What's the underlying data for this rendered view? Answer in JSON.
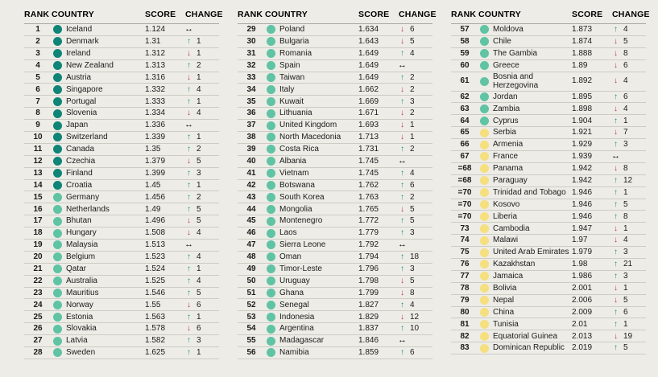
{
  "chart_data": {
    "type": "table",
    "columns": [
      "RANK",
      "COUNTRY",
      "SCORE",
      "CHANGE"
    ],
    "tier_colors": {
      "dark": "#0f8577",
      "light": "#5fc3a4",
      "yellow": "#f6df7d"
    },
    "arrow_glyphs": {
      "up": "↑",
      "down": "↓",
      "same": "↔"
    },
    "arrow_colors": {
      "up": "#238b80",
      "down": "#c03048",
      "same": "#101010"
    },
    "groups": [
      [
        {
          "rank": "1",
          "country": "Iceland",
          "score": "1.124",
          "dir": "same",
          "change": "",
          "tier": "dark"
        },
        {
          "rank": "2",
          "country": "Denmark",
          "score": "1.31",
          "dir": "up",
          "change": "1",
          "tier": "dark"
        },
        {
          "rank": "3",
          "country": "Ireland",
          "score": "1.312",
          "dir": "down",
          "change": "1",
          "tier": "dark"
        },
        {
          "rank": "4",
          "country": "New Zealand",
          "score": "1.313",
          "dir": "up",
          "change": "2",
          "tier": "dark"
        },
        {
          "rank": "5",
          "country": "Austria",
          "score": "1.316",
          "dir": "down",
          "change": "1",
          "tier": "dark"
        },
        {
          "rank": "6",
          "country": "Singapore",
          "score": "1.332",
          "dir": "up",
          "change": "4",
          "tier": "dark"
        },
        {
          "rank": "7",
          "country": "Portugal",
          "score": "1.333",
          "dir": "up",
          "change": "1",
          "tier": "dark"
        },
        {
          "rank": "8",
          "country": "Slovenia",
          "score": "1.334",
          "dir": "down",
          "change": "4",
          "tier": "dark"
        },
        {
          "rank": "9",
          "country": "Japan",
          "score": "1.336",
          "dir": "same",
          "change": "",
          "tier": "dark"
        },
        {
          "rank": "10",
          "country": "Switzerland",
          "score": "1.339",
          "dir": "up",
          "change": "1",
          "tier": "dark"
        },
        {
          "rank": "11",
          "country": "Canada",
          "score": "1.35",
          "dir": "up",
          "change": "2",
          "tier": "dark"
        },
        {
          "rank": "12",
          "country": "Czechia",
          "score": "1.379",
          "dir": "down",
          "change": "5",
          "tier": "dark"
        },
        {
          "rank": "13",
          "country": "Finland",
          "score": "1.399",
          "dir": "up",
          "change": "3",
          "tier": "dark"
        },
        {
          "rank": "14",
          "country": "Croatia",
          "score": "1.45",
          "dir": "up",
          "change": "1",
          "tier": "dark"
        },
        {
          "rank": "15",
          "country": "Germany",
          "score": "1.456",
          "dir": "up",
          "change": "2",
          "tier": "light"
        },
        {
          "rank": "16",
          "country": "Netherlands",
          "score": "1.49",
          "dir": "up",
          "change": "5",
          "tier": "light"
        },
        {
          "rank": "17",
          "country": "Bhutan",
          "score": "1.496",
          "dir": "down",
          "change": "5",
          "tier": "light"
        },
        {
          "rank": "18",
          "country": "Hungary",
          "score": "1.508",
          "dir": "down",
          "change": "4",
          "tier": "light"
        },
        {
          "rank": "19",
          "country": "Malaysia",
          "score": "1.513",
          "dir": "same",
          "change": "",
          "tier": "light"
        },
        {
          "rank": "20",
          "country": "Belgium",
          "score": "1.523",
          "dir": "up",
          "change": "4",
          "tier": "light"
        },
        {
          "rank": "21",
          "country": "Qatar",
          "score": "1.524",
          "dir": "up",
          "change": "1",
          "tier": "light"
        },
        {
          "rank": "22",
          "country": "Australia",
          "score": "1.525",
          "dir": "up",
          "change": "4",
          "tier": "light"
        },
        {
          "rank": "23",
          "country": "Mauritius",
          "score": "1.546",
          "dir": "up",
          "change": "5",
          "tier": "light"
        },
        {
          "rank": "24",
          "country": "Norway",
          "score": "1.55",
          "dir": "down",
          "change": "6",
          "tier": "light"
        },
        {
          "rank": "25",
          "country": "Estonia",
          "score": "1.563",
          "dir": "up",
          "change": "1",
          "tier": "light"
        },
        {
          "rank": "26",
          "country": "Slovakia",
          "score": "1.578",
          "dir": "down",
          "change": "6",
          "tier": "light"
        },
        {
          "rank": "27",
          "country": "Latvia",
          "score": "1.582",
          "dir": "up",
          "change": "3",
          "tier": "light"
        },
        {
          "rank": "28",
          "country": "Sweden",
          "score": "1.625",
          "dir": "up",
          "change": "1",
          "tier": "light"
        }
      ],
      [
        {
          "rank": "29",
          "country": "Poland",
          "score": "1.634",
          "dir": "down",
          "change": "6",
          "tier": "light"
        },
        {
          "rank": "30",
          "country": "Bulgaria",
          "score": "1.643",
          "dir": "down",
          "change": "5",
          "tier": "light"
        },
        {
          "rank": "31",
          "country": "Romania",
          "score": "1.649",
          "dir": "up",
          "change": "4",
          "tier": "light"
        },
        {
          "rank": "32",
          "country": "Spain",
          "score": "1.649",
          "dir": "same",
          "change": "",
          "tier": "light"
        },
        {
          "rank": "33",
          "country": "Taiwan",
          "score": "1.649",
          "dir": "up",
          "change": "2",
          "tier": "light"
        },
        {
          "rank": "34",
          "country": "Italy",
          "score": "1.662",
          "dir": "down",
          "change": "2",
          "tier": "light"
        },
        {
          "rank": "35",
          "country": "Kuwait",
          "score": "1.669",
          "dir": "up",
          "change": "3",
          "tier": "light"
        },
        {
          "rank": "36",
          "country": "Lithuania",
          "score": "1.671",
          "dir": "down",
          "change": "2",
          "tier": "light"
        },
        {
          "rank": "37",
          "country": "United Kingdom",
          "score": "1.693",
          "dir": "down",
          "change": "1",
          "tier": "light"
        },
        {
          "rank": "38",
          "country": "North Macedonia",
          "score": "1.713",
          "dir": "down",
          "change": "1",
          "tier": "light"
        },
        {
          "rank": "39",
          "country": "Costa Rica",
          "score": "1.731",
          "dir": "up",
          "change": "2",
          "tier": "light"
        },
        {
          "rank": "40",
          "country": "Albania",
          "score": "1.745",
          "dir": "same",
          "change": "",
          "tier": "light"
        },
        {
          "rank": "41",
          "country": "Vietnam",
          "score": "1.745",
          "dir": "up",
          "change": "4",
          "tier": "light"
        },
        {
          "rank": "42",
          "country": "Botswana",
          "score": "1.762",
          "dir": "up",
          "change": "6",
          "tier": "light"
        },
        {
          "rank": "43",
          "country": "South Korea",
          "score": "1.763",
          "dir": "up",
          "change": "2",
          "tier": "light"
        },
        {
          "rank": "44",
          "country": "Mongolia",
          "score": "1.765",
          "dir": "down",
          "change": "5",
          "tier": "light"
        },
        {
          "rank": "45",
          "country": "Montenegro",
          "score": "1.772",
          "dir": "up",
          "change": "5",
          "tier": "light"
        },
        {
          "rank": "46",
          "country": "Laos",
          "score": "1.779",
          "dir": "up",
          "change": "3",
          "tier": "light"
        },
        {
          "rank": "47",
          "country": "Sierra Leone",
          "score": "1.792",
          "dir": "same",
          "change": "",
          "tier": "light"
        },
        {
          "rank": "48",
          "country": "Oman",
          "score": "1.794",
          "dir": "up",
          "change": "18",
          "tier": "light"
        },
        {
          "rank": "49",
          "country": "Timor-Leste",
          "score": "1.796",
          "dir": "up",
          "change": "3",
          "tier": "light"
        },
        {
          "rank": "50",
          "country": "Uruguay",
          "score": "1.798",
          "dir": "down",
          "change": "5",
          "tier": "light"
        },
        {
          "rank": "51",
          "country": "Ghana",
          "score": "1.799",
          "dir": "down",
          "change": "8",
          "tier": "light"
        },
        {
          "rank": "52",
          "country": "Senegal",
          "score": "1.827",
          "dir": "up",
          "change": "4",
          "tier": "light"
        },
        {
          "rank": "53",
          "country": "Indonesia",
          "score": "1.829",
          "dir": "down",
          "change": "12",
          "tier": "light"
        },
        {
          "rank": "54",
          "country": "Argentina",
          "score": "1.837",
          "dir": "up",
          "change": "10",
          "tier": "light"
        },
        {
          "rank": "55",
          "country": "Madagascar",
          "score": "1.846",
          "dir": "same",
          "change": "",
          "tier": "light"
        },
        {
          "rank": "56",
          "country": "Namibia",
          "score": "1.859",
          "dir": "up",
          "change": "6",
          "tier": "light"
        }
      ],
      [
        {
          "rank": "57",
          "country": "Moldova",
          "score": "1.873",
          "dir": "up",
          "change": "4",
          "tier": "light"
        },
        {
          "rank": "58",
          "country": "Chile",
          "score": "1.874",
          "dir": "down",
          "change": "5",
          "tier": "light"
        },
        {
          "rank": "59",
          "country": "The Gambia",
          "score": "1.888",
          "dir": "down",
          "change": "8",
          "tier": "light"
        },
        {
          "rank": "60",
          "country": "Greece",
          "score": "1.89",
          "dir": "down",
          "change": "6",
          "tier": "light"
        },
        {
          "rank": "61",
          "country": "Bosnia and Herzegovina",
          "score": "1.892",
          "dir": "down",
          "change": "4",
          "tier": "light"
        },
        {
          "rank": "62",
          "country": "Jordan",
          "score": "1.895",
          "dir": "up",
          "change": "6",
          "tier": "light"
        },
        {
          "rank": "63",
          "country": "Zambia",
          "score": "1.898",
          "dir": "down",
          "change": "4",
          "tier": "light"
        },
        {
          "rank": "64",
          "country": "Cyprus",
          "score": "1.904",
          "dir": "up",
          "change": "1",
          "tier": "light"
        },
        {
          "rank": "65",
          "country": "Serbia",
          "score": "1.921",
          "dir": "down",
          "change": "7",
          "tier": "yellow"
        },
        {
          "rank": "66",
          "country": "Armenia",
          "score": "1.929",
          "dir": "up",
          "change": "3",
          "tier": "yellow"
        },
        {
          "rank": "67",
          "country": "France",
          "score": "1.939",
          "dir": "same",
          "change": "",
          "tier": "yellow"
        },
        {
          "rank": "=68",
          "country": "Panama",
          "score": "1.942",
          "dir": "down",
          "change": "8",
          "tier": "yellow"
        },
        {
          "rank": "=68",
          "country": "Paraguay",
          "score": "1.942",
          "dir": "up",
          "change": "12",
          "tier": "yellow"
        },
        {
          "rank": "=70",
          "country": "Trinidad and Tobago",
          "score": "1.946",
          "dir": "up",
          "change": "1",
          "tier": "yellow"
        },
        {
          "rank": "=70",
          "country": "Kosovo",
          "score": "1.946",
          "dir": "up",
          "change": "5",
          "tier": "yellow"
        },
        {
          "rank": "=70",
          "country": "Liberia",
          "score": "1.946",
          "dir": "up",
          "change": "8",
          "tier": "yellow"
        },
        {
          "rank": "73",
          "country": "Cambodia",
          "score": "1.947",
          "dir": "down",
          "change": "1",
          "tier": "yellow"
        },
        {
          "rank": "74",
          "country": "Malawi",
          "score": "1.97",
          "dir": "down",
          "change": "4",
          "tier": "yellow"
        },
        {
          "rank": "75",
          "country": "United Arab Emirates",
          "score": "1.979",
          "dir": "up",
          "change": "3",
          "tier": "yellow"
        },
        {
          "rank": "76",
          "country": "Kazakhstan",
          "score": "1.98",
          "dir": "up",
          "change": "21",
          "tier": "yellow"
        },
        {
          "rank": "77",
          "country": "Jamaica",
          "score": "1.986",
          "dir": "up",
          "change": "3",
          "tier": "yellow"
        },
        {
          "rank": "78",
          "country": "Bolivia",
          "score": "2.001",
          "dir": "down",
          "change": "1",
          "tier": "yellow"
        },
        {
          "rank": "79",
          "country": "Nepal",
          "score": "2.006",
          "dir": "down",
          "change": "5",
          "tier": "yellow"
        },
        {
          "rank": "80",
          "country": "China",
          "score": "2.009",
          "dir": "up",
          "change": "6",
          "tier": "yellow"
        },
        {
          "rank": "81",
          "country": "Tunisia",
          "score": "2.01",
          "dir": "up",
          "change": "1",
          "tier": "yellow"
        },
        {
          "rank": "82",
          "country": "Equatorial Guinea",
          "score": "2.013",
          "dir": "down",
          "change": "19",
          "tier": "yellow"
        },
        {
          "rank": "83",
          "country": "Dominican Republic",
          "score": "2.019",
          "dir": "up",
          "change": "5",
          "tier": "yellow"
        }
      ]
    ]
  },
  "page": {
    "background": "#edece7"
  }
}
